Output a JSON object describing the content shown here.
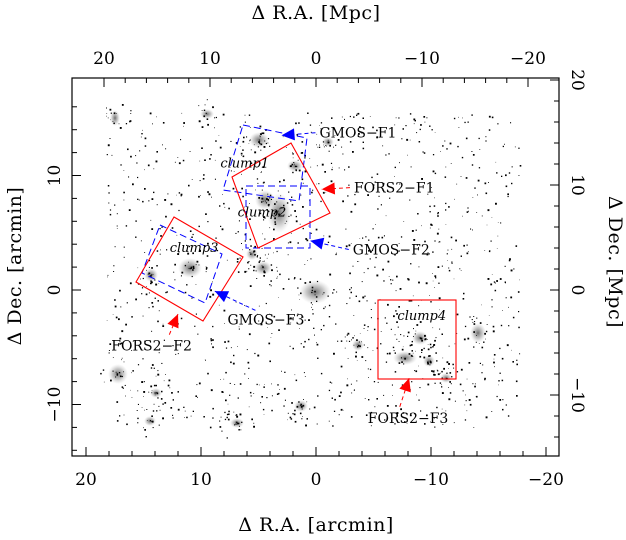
{
  "figure": {
    "axis_titles": {
      "bottom": "Δ R.A.   [arcmin]",
      "top": "Δ R.A.   [Mpc]",
      "left": "Δ Dec.   [arcmin]",
      "right": "Δ Dec.   [Mpc]"
    },
    "bottom_ticks": [
      {
        "v": 20,
        "label": "20"
      },
      {
        "v": 10,
        "label": "10"
      },
      {
        "v": 0,
        "label": "0"
      },
      {
        "v": -10,
        "label": "−10"
      },
      {
        "v": -20,
        "label": "−20"
      }
    ],
    "left_ticks": [
      {
        "v": 10,
        "label": "10"
      },
      {
        "v": 0,
        "label": "0"
      },
      {
        "v": -10,
        "label": "−10"
      }
    ],
    "top_ticks": [
      {
        "v": 20,
        "label": "20"
      },
      {
        "v": 10,
        "label": "10"
      },
      {
        "v": 0,
        "label": "0"
      },
      {
        "v": -10,
        "label": "−10"
      },
      {
        "v": -20,
        "label": "−20"
      }
    ],
    "right_ticks": [
      {
        "v": 20,
        "label": "20"
      },
      {
        "v": 10,
        "label": "10"
      },
      {
        "v": 0,
        "label": "0"
      },
      {
        "v": -10,
        "label": "−10"
      }
    ],
    "clumps": [
      {
        "label": "clump1",
        "ra": 6.2,
        "dec": 10.7
      },
      {
        "label": "clump2",
        "ra": 4.7,
        "dec": 6.4
      },
      {
        "label": "clump3",
        "ra": 10.6,
        "dec": 3.3
      },
      {
        "label": "clump4",
        "ra": -9.2,
        "dec": -2.6
      }
    ],
    "fields": [
      {
        "label": "GMOS−F1",
        "color": "#0000ff",
        "arrow_to_ra": 3.0,
        "arrow_to_dec": 13.5,
        "label_ra": -0.3,
        "label_dec": 13.3
      },
      {
        "label": "FORS2−F1",
        "color": "#ff0000",
        "arrow_to_ra": -0.5,
        "arrow_to_dec": 8.8,
        "label_ra": -3.3,
        "label_dec": 8.5
      },
      {
        "label": "GMOS−F2",
        "color": "#0000ff",
        "arrow_to_ra": 0.5,
        "arrow_to_dec": 4.3,
        "label_ra": -3.2,
        "label_dec": 3.1
      },
      {
        "label": "FORS2−F2",
        "color": "#ff0000",
        "arrow_to_ra": 12.0,
        "arrow_to_dec": -2.1,
        "label_ra": 17.8,
        "label_dec": -5.3
      },
      {
        "label": "GMOS−F3",
        "color": "#0000ff",
        "arrow_to_ra": 8.8,
        "arrow_to_dec": -0.1,
        "label_ra": 7.7,
        "label_dec": -3.0
      },
      {
        "label": "FORS2−F3",
        "color": "#ff0000",
        "arrow_to_ra": -8.1,
        "arrow_to_dec": -7.7,
        "label_ra": -4.5,
        "label_dec": -11.6
      }
    ]
  },
  "colors": {
    "fors2": "#ff0000",
    "gmos": "#0000ff"
  }
}
